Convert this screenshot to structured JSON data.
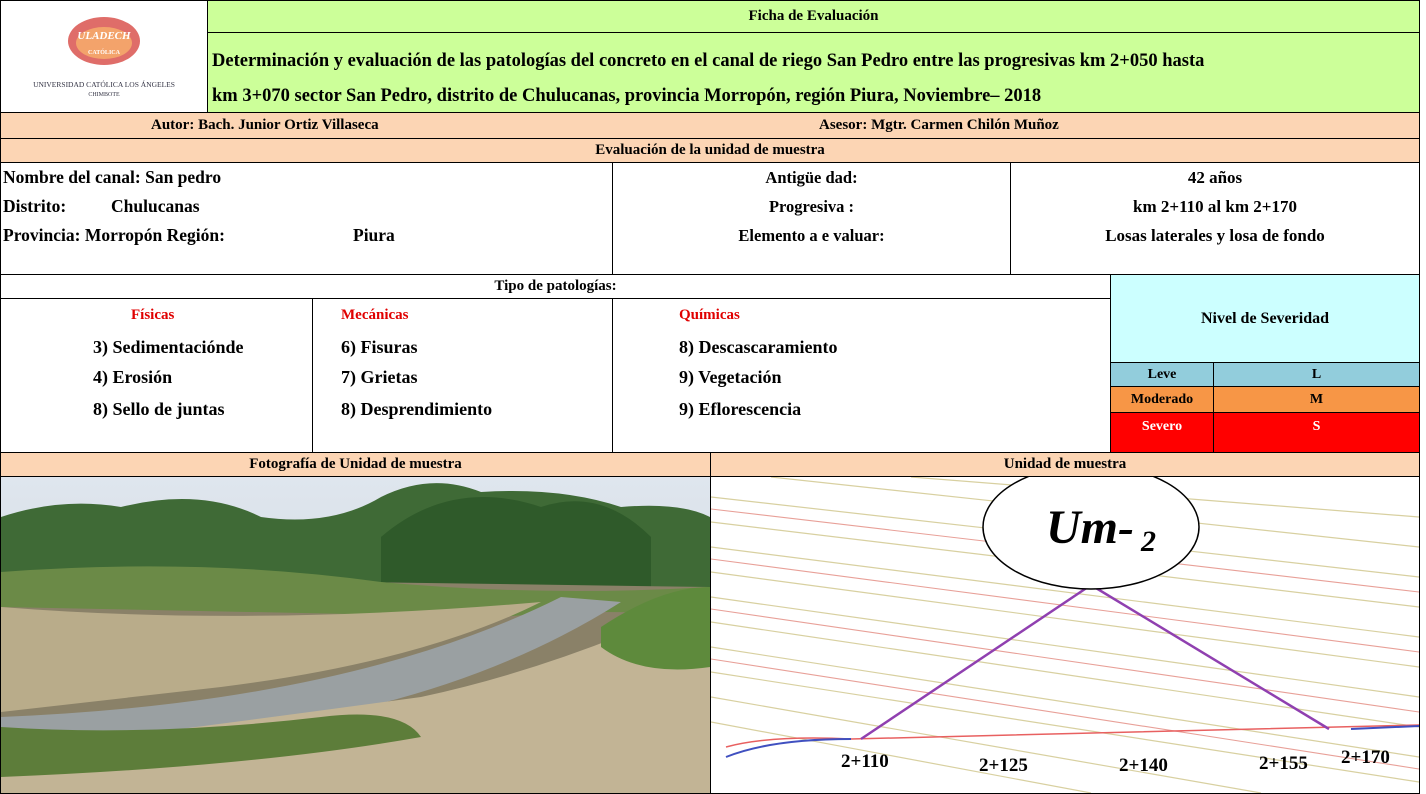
{
  "logo": {
    "name": "ULADECH",
    "subname": "CATÓLICA",
    "university": "UNIVERSIDAD CATÓLICA LOS ÁNGELES",
    "city": "CHIMBOTE"
  },
  "header": {
    "title": "Ficha de Evaluación",
    "subtitle_lines": [
      "Determinación y evaluación de las patologías del concreto en el canal de riego San Pedro entre las progresivas km 2+050 hasta",
      "km 3+070 sector San Pedro, distrito de Chulucanas, provincia Morropón, región Piura, Noviembre– 2018"
    ]
  },
  "author": "Autor: Bach. Junior Ortiz Villaseca",
  "advisor": "Asesor: Mgtr. Carmen Chilón Muñoz",
  "section_title": "Evaluación de la unidad de muestra",
  "info": {
    "left": [
      [
        "Nombre del canal: San pedro"
      ],
      [
        "Distrito:",
        "Chulucanas"
      ],
      [
        "Provincia: Morropón Región:",
        "Piura"
      ]
    ],
    "labels": [
      "Antigüe dad:",
      "Progresiva :",
      "Elemento a e valuar:"
    ],
    "values": [
      "42 años",
      "km 2+110 al km 2+170",
      "Losas laterales y losa de fondo"
    ]
  },
  "pathologies": {
    "title": "Tipo de patologías:",
    "groups": [
      {
        "name": "Físicas",
        "items": [
          "3) Sedimentaciónde",
          "4) Erosión",
          "8) Sello de juntas"
        ]
      },
      {
        "name": "Mecánicas",
        "items": [
          "6) Fisuras",
          "7) Grietas",
          "8) Desprendimiento"
        ]
      },
      {
        "name": "Químicas",
        "items": [
          "8) Descascaramiento",
          "9) Vegetación",
          "9) Eflorescencia"
        ]
      }
    ]
  },
  "severity": {
    "title": "Nivel de Severidad",
    "levels": [
      {
        "name": "Leve",
        "code": "L"
      },
      {
        "name": "Moderado",
        "code": "M"
      },
      {
        "name": "Severo",
        "code": "S"
      }
    ]
  },
  "photo_title": "Fotografía de Unidad de muestra",
  "map": {
    "title": "Unidad de muestra",
    "marker": "Um-",
    "marker_sub": "2",
    "progressives": [
      "2+110",
      "2+125",
      "2+140",
      "2+155",
      "2+170"
    ]
  }
}
